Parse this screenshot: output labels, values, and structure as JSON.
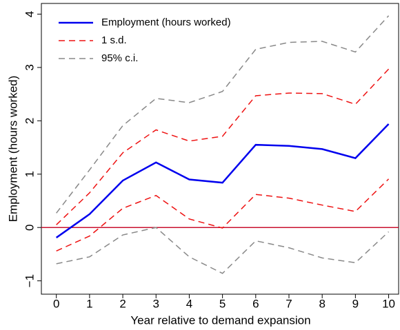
{
  "chart_data": {
    "type": "line",
    "x_label": "Year relative to demand expansion",
    "y_label": "Employment (hours worked)",
    "x": [
      0,
      1,
      2,
      3,
      4,
      5,
      6,
      7,
      8,
      9,
      10
    ],
    "series": [
      {
        "name": "Employment (hours worked)",
        "color": "#0000ee",
        "dash": false,
        "values": [
          -0.19,
          0.25,
          0.88,
          1.22,
          0.9,
          0.84,
          1.55,
          1.53,
          1.47,
          1.3,
          1.94
        ]
      },
      {
        "name": "1 s.d.",
        "color": "#ee1111",
        "dash": true,
        "upper": [
          0.05,
          0.65,
          1.4,
          1.83,
          1.62,
          1.71,
          2.47,
          2.52,
          2.51,
          2.31,
          2.97
        ],
        "lower": [
          -0.44,
          -0.16,
          0.36,
          0.6,
          0.16,
          -0.01,
          0.62,
          0.55,
          0.42,
          0.3,
          0.91
        ]
      },
      {
        "name": "95% c.i.",
        "color": "#888888",
        "dash": true,
        "upper": [
          0.27,
          1.08,
          1.91,
          2.42,
          2.34,
          2.55,
          3.34,
          3.47,
          3.49,
          3.29,
          3.97
        ],
        "lower": [
          -0.68,
          -0.55,
          -0.14,
          0.0,
          -0.55,
          -0.86,
          -0.25,
          -0.38,
          -0.57,
          -0.66,
          -0.08
        ]
      }
    ],
    "hline": {
      "value": 0,
      "color": "#c8102e"
    },
    "xlim": [
      -0.45,
      10.3
    ],
    "ylim": [
      -1.25,
      4.2
    ],
    "xticks": [
      0,
      1,
      2,
      3,
      4,
      5,
      6,
      7,
      8,
      9,
      10
    ],
    "yticks": [
      {
        "value": -1,
        "label": "−1"
      },
      0,
      1,
      2,
      3,
      4
    ],
    "legend": "top-left"
  }
}
